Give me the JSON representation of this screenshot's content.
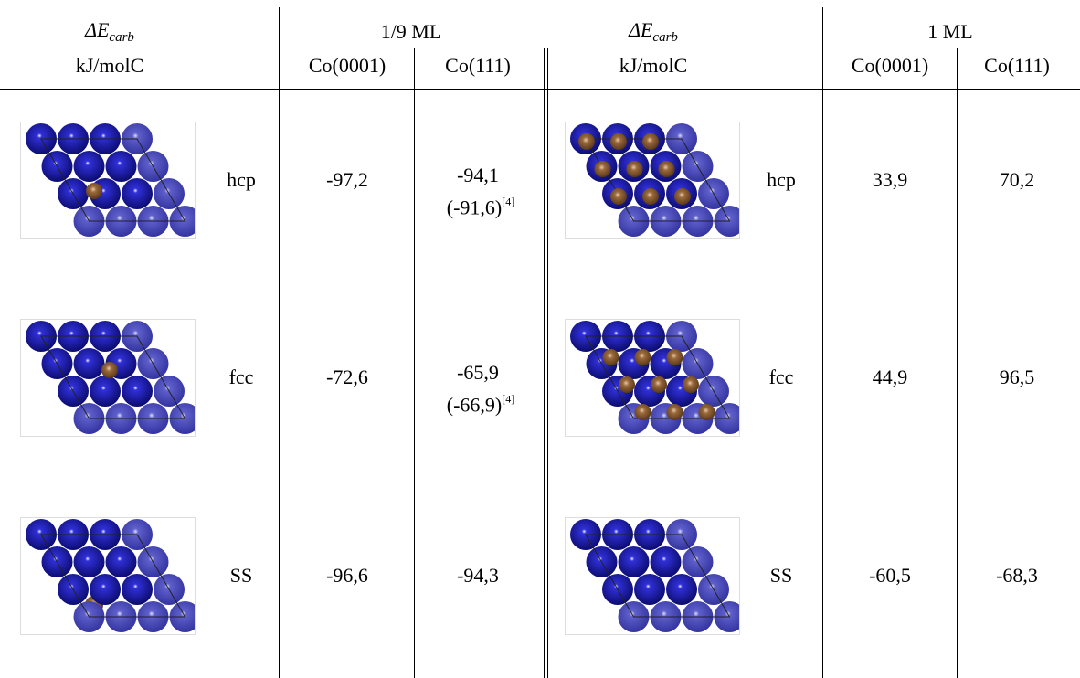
{
  "table": {
    "header": {
      "energy": {
        "symbol": "ΔE",
        "subscript": "carb"
      },
      "unit": "kJ/molC",
      "coverage_low": "1/9 ML",
      "coverage_high": "1 ML",
      "surfaces": [
        "Co(0001)",
        "Co(111)"
      ]
    },
    "rows": [
      {
        "site": "hcp",
        "low": [
          "-97,2",
          "-94,1"
        ],
        "low_ref": {
          "value": "(-91,6)",
          "citation": "[4]"
        },
        "high": [
          "33,9",
          "70,2"
        ]
      },
      {
        "site": "fcc",
        "low": [
          "-72,6",
          "-65,9"
        ],
        "low_ref": {
          "value": "(-66,9)",
          "citation": "[4]"
        },
        "high": [
          "44,9",
          "96,5"
        ]
      },
      {
        "site": "SS",
        "low": [
          "-96,6",
          "-94,3"
        ],
        "high": [
          "-60,5",
          "-68,3"
        ]
      }
    ]
  }
}
